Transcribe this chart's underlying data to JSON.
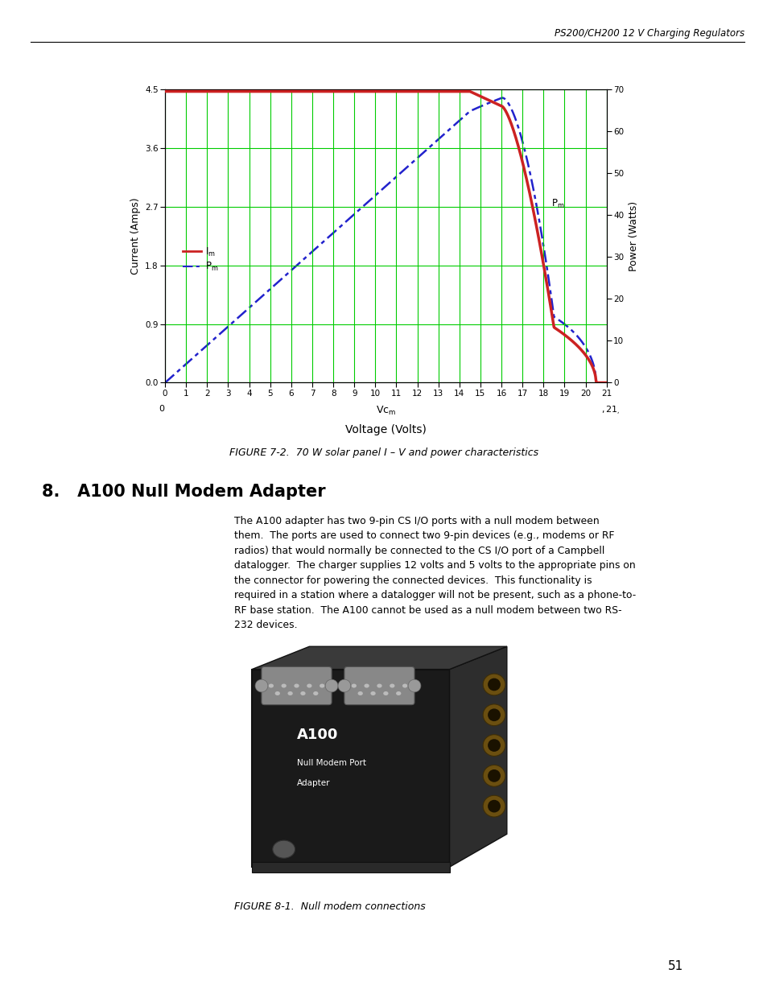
{
  "page_title": "PS200/CH200 12 V Charging Regulators",
  "page_number": "51",
  "fig7_caption": "FIGURE 7-2.  70 W solar panel I – V and power characteristics",
  "section_title": "8.   A100 Null Modem Adapter",
  "section_body_lines": [
    "The A100 adapter has two 9-pin CS I/O ports with a null modem between",
    "them.  The ports are used to connect two 9-pin devices (e.g., modems or RF",
    "radios) that would normally be connected to the CS I/O port of a Campbell",
    "datalogger.  The charger supplies 12 volts and 5 volts to the appropriate pins on",
    "the connector for powering the connected devices.  This functionality is",
    "required in a station where a datalogger will not be present, such as a phone-to-",
    "RF base station.  The A100 cannot be used as a null modem between two RS-",
    "232 devices."
  ],
  "fig8_caption": "FIGURE 8-1.  Null modem connections",
  "chart": {
    "xlim": [
      0,
      21
    ],
    "ylim_left": [
      0,
      4.5
    ],
    "ylim_right": [
      0,
      70
    ],
    "xticks": [
      0,
      1,
      2,
      3,
      4,
      5,
      6,
      7,
      8,
      9,
      10,
      11,
      12,
      13,
      14,
      15,
      16,
      17,
      18,
      19,
      20,
      21
    ],
    "yticks_left": [
      0,
      0.9,
      1.8,
      2.7,
      3.6,
      4.5
    ],
    "yticks_right": [
      0,
      10,
      20,
      30,
      40,
      50,
      60,
      70
    ],
    "xlabel": "Voltage (Volts)",
    "ylabel_left": "Current (Amps)",
    "ylabel_right": "Power (Watts)",
    "grid_color": "#00cc00",
    "current_color": "#cc2222",
    "power_color": "#2222cc",
    "Isc": 4.47,
    "flat_end": 14.5,
    "knee_end": 19.2,
    "Voc": 21.0
  }
}
